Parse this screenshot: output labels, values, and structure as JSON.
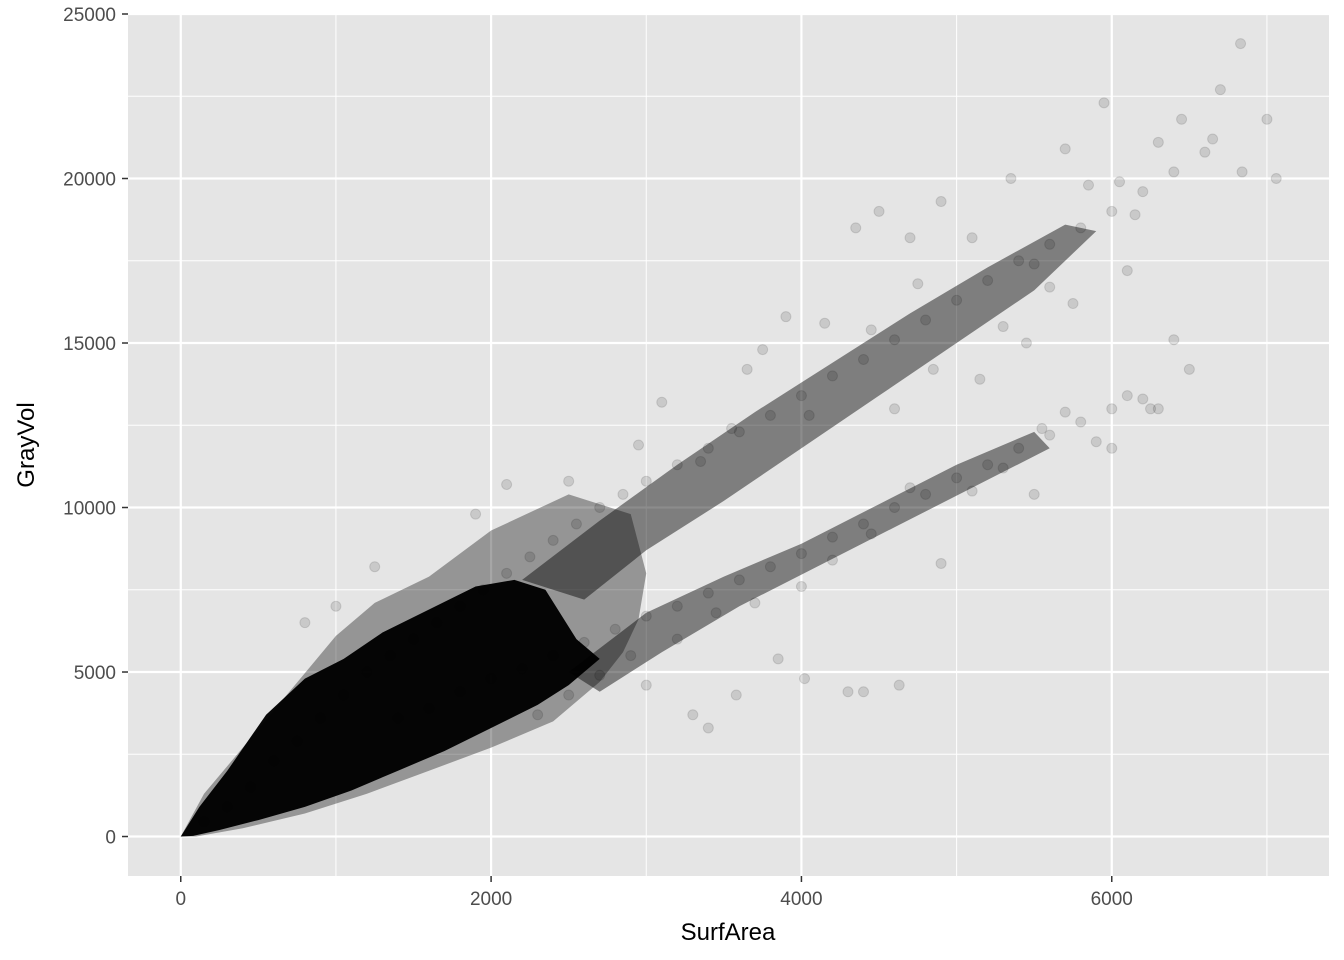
{
  "chart_data": {
    "type": "scatter",
    "title": "",
    "xlabel": "SurfArea",
    "ylabel": "GrayVol",
    "xlim": [
      -340,
      7400
    ],
    "ylim": [
      -1200,
      25000
    ],
    "x_ticks": [
      0,
      2000,
      4000,
      6000
    ],
    "x_tick_labels": [
      "0",
      "2000",
      "4000",
      "6000"
    ],
    "y_ticks": [
      0,
      5000,
      10000,
      15000,
      20000,
      25000
    ],
    "y_tick_labels": [
      "0",
      "5000",
      "10000",
      "15000",
      "20000",
      "25000"
    ],
    "grid": true,
    "legend": "none",
    "point_color": "#000000",
    "point_alpha": 0.12,
    "panel_background": "#e5e5e5",
    "grid_color": "#ffffff",
    "series": [
      {
        "structure": "upper-band",
        "points": [
          [
            150,
            450
          ],
          [
            300,
            900
          ],
          [
            450,
            1500
          ],
          [
            600,
            2300
          ],
          [
            750,
            2900
          ],
          [
            900,
            3600
          ],
          [
            1050,
            4300
          ],
          [
            1200,
            5000
          ],
          [
            1350,
            5500
          ],
          [
            1500,
            6000
          ],
          [
            1650,
            6500
          ],
          [
            1800,
            7000
          ],
          [
            1950,
            7500
          ],
          [
            2100,
            8000
          ],
          [
            2250,
            8500
          ],
          [
            2400,
            9000
          ],
          [
            2550,
            9500
          ],
          [
            2700,
            10000
          ],
          [
            2850,
            10400
          ],
          [
            3000,
            10800
          ],
          [
            3200,
            11300
          ],
          [
            3400,
            11800
          ],
          [
            3600,
            12300
          ],
          [
            3800,
            12800
          ],
          [
            4000,
            13400
          ],
          [
            4200,
            14000
          ],
          [
            4400,
            14500
          ],
          [
            4600,
            15100
          ],
          [
            4800,
            15700
          ],
          [
            5000,
            16300
          ],
          [
            5200,
            16900
          ],
          [
            5400,
            17500
          ],
          [
            5600,
            18000
          ],
          [
            5800,
            18500
          ],
          [
            6000,
            19000
          ],
          [
            6200,
            19600
          ],
          [
            6400,
            20200
          ],
          [
            6600,
            20800
          ],
          [
            3750,
            14800
          ],
          [
            3900,
            15800
          ],
          [
            4150,
            15600
          ],
          [
            4350,
            18500
          ],
          [
            4500,
            19000
          ],
          [
            4700,
            18200
          ],
          [
            4900,
            19300
          ],
          [
            5100,
            18200
          ],
          [
            5350,
            20000
          ],
          [
            5500,
            17400
          ],
          [
            5700,
            20900
          ],
          [
            5850,
            19800
          ],
          [
            6050,
            19900
          ],
          [
            6150,
            18900
          ],
          [
            6300,
            21100
          ],
          [
            6450,
            21800
          ],
          [
            6700,
            22700
          ],
          [
            6830,
            24100
          ],
          [
            6840,
            20200
          ],
          [
            7000,
            21800
          ],
          [
            7060,
            20000
          ],
          [
            5950,
            22300
          ],
          [
            6650,
            21200
          ],
          [
            3100,
            13200
          ],
          [
            2950,
            11900
          ],
          [
            2500,
            10800
          ],
          [
            2100,
            10700
          ],
          [
            1900,
            9800
          ],
          [
            1250,
            8200
          ],
          [
            1000,
            7000
          ],
          [
            800,
            6500
          ],
          [
            4600,
            13000
          ],
          [
            4850,
            14200
          ],
          [
            5150,
            13900
          ],
          [
            5450,
            15000
          ],
          [
            5750,
            16200
          ],
          [
            6100,
            17200
          ],
          [
            6400,
            15100
          ],
          [
            6500,
            14200
          ],
          [
            4050,
            12800
          ],
          [
            3550,
            12400
          ],
          [
            3350,
            11400
          ],
          [
            5300,
            15500
          ],
          [
            5600,
            16700
          ],
          [
            4450,
            15400
          ],
          [
            4750,
            16800
          ],
          [
            3650,
            14200
          ]
        ]
      },
      {
        "structure": "lower-band",
        "points": [
          [
            1400,
            3600
          ],
          [
            1600,
            3900
          ],
          [
            1800,
            4400
          ],
          [
            2000,
            4800
          ],
          [
            2200,
            5100
          ],
          [
            2400,
            5500
          ],
          [
            2600,
            5900
          ],
          [
            2800,
            6300
          ],
          [
            3000,
            6700
          ],
          [
            3200,
            7000
          ],
          [
            3400,
            7400
          ],
          [
            3600,
            7800
          ],
          [
            3800,
            8200
          ],
          [
            4000,
            8600
          ],
          [
            4200,
            9100
          ],
          [
            4400,
            9500
          ],
          [
            4600,
            10000
          ],
          [
            4800,
            10400
          ],
          [
            5000,
            10900
          ],
          [
            5200,
            11300
          ],
          [
            5400,
            11800
          ],
          [
            5600,
            12200
          ],
          [
            5800,
            12600
          ],
          [
            6000,
            13000
          ],
          [
            6200,
            13300
          ],
          [
            5700,
            12900
          ],
          [
            5900,
            12000
          ],
          [
            6000,
            11800
          ],
          [
            6300,
            13000
          ],
          [
            3300,
            3700
          ],
          [
            3400,
            3300
          ],
          [
            3850,
            5400
          ],
          [
            4020,
            4800
          ],
          [
            4300,
            4400
          ],
          [
            4400,
            4400
          ],
          [
            4630,
            4600
          ],
          [
            3580,
            4300
          ],
          [
            4900,
            8300
          ],
          [
            4000,
            7600
          ],
          [
            4200,
            8400
          ],
          [
            4450,
            9200
          ],
          [
            4700,
            10600
          ],
          [
            5100,
            10500
          ],
          [
            5300,
            11200
          ],
          [
            5500,
            10400
          ],
          [
            3200,
            6000
          ],
          [
            3450,
            6800
          ],
          [
            3700,
            7100
          ],
          [
            2900,
            5500
          ],
          [
            2700,
            4900
          ],
          [
            2500,
            4300
          ],
          [
            2300,
            3700
          ],
          [
            3000,
            4600
          ],
          [
            5550,
            12400
          ],
          [
            6100,
            13400
          ],
          [
            6250,
            13000
          ]
        ]
      }
    ]
  }
}
